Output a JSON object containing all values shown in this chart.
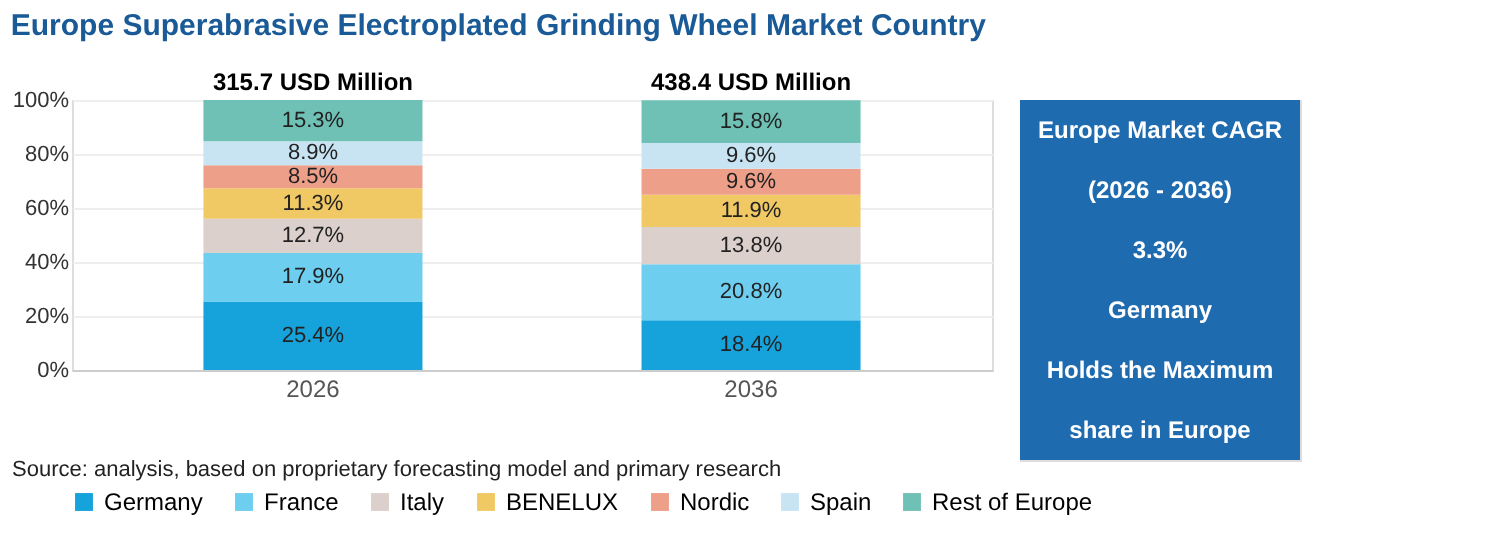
{
  "chart_data": [
    {
      "type": "bar",
      "title": "Europe Superabrasive Electroplated Grinding Wheel Market Country",
      "categories": [
        "2026",
        "2036"
      ],
      "stacked": true,
      "series": [
        {
          "name": "Germany",
          "color": "#16a3db",
          "values": [
            25.4,
            18.4
          ],
          "value_labels": [
            "25.4%",
            "18.4%"
          ]
        },
        {
          "name": "France",
          "color": "#6dcef0",
          "values": [
            17.9,
            20.8
          ],
          "value_labels": [
            "17.9%",
            "20.8%"
          ]
        },
        {
          "name": "Italy",
          "color": "#dcd0cc",
          "values": [
            12.7,
            13.8
          ],
          "value_labels": [
            "12.7%",
            "13.8%"
          ]
        },
        {
          "name": "BENELUX",
          "color": "#f1c964",
          "values": [
            11.3,
            11.9
          ],
          "value_labels": [
            "11.3%",
            "11.9%"
          ]
        },
        {
          "name": "Nordic",
          "color": "#ee9f89",
          "values": [
            8.5,
            9.6
          ],
          "value_labels": [
            "8.5%",
            "9.6%"
          ]
        },
        {
          "name": "Spain",
          "color": "#c8e4f3",
          "values": [
            8.9,
            9.6
          ],
          "value_labels": [
            "8.9%",
            "9.6%"
          ]
        },
        {
          "name": "Rest of Europe",
          "color": "#70c1b5",
          "values": [
            15.3,
            15.8
          ],
          "value_labels": [
            "15.3%",
            "15.8%"
          ]
        }
      ],
      "ylim": [
        0,
        100
      ],
      "yticks": [
        {
          "value": 0,
          "label": "0%"
        },
        {
          "value": 20,
          "label": "20%"
        },
        {
          "value": 40,
          "label": "40%"
        },
        {
          "value": 60,
          "label": "60%"
        },
        {
          "value": 80,
          "label": "80%"
        },
        {
          "value": 100,
          "label": "100%"
        }
      ],
      "grid": "y",
      "legend": "bottom",
      "annotations": [
        {
          "text": "315.7 USD Million",
          "x": "2026",
          "y": 100
        },
        {
          "text": "438.4 USD Million",
          "x": "2036",
          "y": 100
        },
        "Source: analysis, based on proprietary forecasting model and primary research"
      ]
    },
    {
      "type": "other",
      "annotations": [
        "Europe Market CAGR",
        "(2026 - 2036)",
        "3.3%",
        "Germany",
        "Holds the Maximum",
        "share in Europe"
      ]
    }
  ]
}
